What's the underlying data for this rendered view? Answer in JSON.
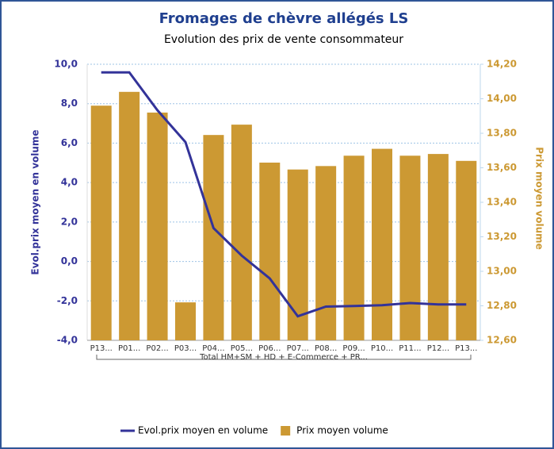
{
  "chart_data": {
    "type": "combo",
    "title": "Fromages de chèvre allégés LS",
    "subtitle": "Evolution des prix de vente consommateur",
    "y_label": "Evol.prix moyen en volume",
    "y2_label": "Prix moyen volume",
    "x_group_label": "Total HM+SM + HD + E-Commerce + PR...",
    "categories": [
      "P13...",
      "P01...",
      "P02...",
      "P03...",
      "P04...",
      "P05...",
      "P06...",
      "P07...",
      "P08...",
      "P09...",
      "P10...",
      "P11...",
      "P12...",
      "P13..."
    ],
    "series": [
      {
        "name": "Evol.prix moyen en volume",
        "type": "line",
        "color": "#333399",
        "values": [
          9.59,
          9.59,
          7.67,
          6.05,
          1.69,
          0.3,
          -0.86,
          -2.78,
          -2.29,
          -2.26,
          -2.22,
          -2.11,
          -2.18,
          -2.18
        ]
      },
      {
        "name": "Prix moyen volume",
        "type": "bar",
        "axis": "y2",
        "color": "#cc9933",
        "values": [
          13.96,
          14.04,
          13.92,
          12.82,
          13.79,
          13.85,
          13.63,
          13.59,
          13.61,
          13.67,
          13.71,
          13.67,
          13.68,
          13.64
        ]
      }
    ],
    "ylim": [
      -4,
      10
    ],
    "yticks": [
      {
        "value": -4,
        "label": "-4,0"
      },
      {
        "value": -2,
        "label": "-2,0"
      },
      {
        "value": 0,
        "label": "0,0"
      },
      {
        "value": 2,
        "label": "2,0"
      },
      {
        "value": 4,
        "label": "4,0"
      },
      {
        "value": 6,
        "label": "6,0"
      },
      {
        "value": 8,
        "label": "8,0"
      },
      {
        "value": 10,
        "label": "10,0"
      }
    ],
    "y2lim": [
      12.6,
      14.2
    ],
    "y2ticks": [
      {
        "value": 12.6,
        "label": "12,60"
      },
      {
        "value": 12.8,
        "label": "12,80"
      },
      {
        "value": 13.0,
        "label": "13,00"
      },
      {
        "value": 13.2,
        "label": "13,20"
      },
      {
        "value": 13.4,
        "label": "13,40"
      },
      {
        "value": 13.6,
        "label": "13,60"
      },
      {
        "value": 13.8,
        "label": "13,80"
      },
      {
        "value": 14.0,
        "label": "14,00"
      },
      {
        "value": 14.2,
        "label": "14,20"
      }
    ],
    "grid": true,
    "legend": "bottom"
  }
}
